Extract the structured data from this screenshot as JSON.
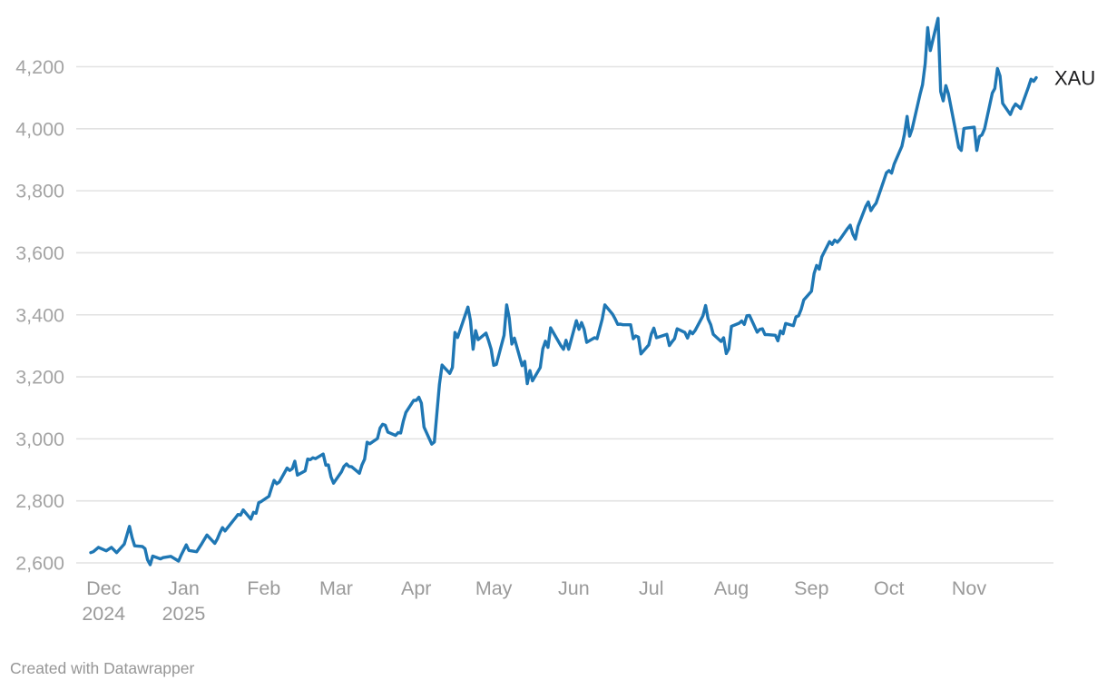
{
  "footer": {
    "text": "Created with Datawrapper"
  },
  "chart_data": {
    "type": "line",
    "title": "",
    "xlabel": "",
    "ylabel": "",
    "grid": true,
    "legend_position": "end-of-line-label",
    "line_color": "#1f77b4",
    "axis_label_color": "#a0a0a0",
    "x_range": [
      "2024-11-26",
      "2025-11-27"
    ],
    "ylim": [
      2540,
      4400
    ],
    "yaxis": {
      "ticks": [
        {
          "value": 2600,
          "label": "2,600"
        },
        {
          "value": 2800,
          "label": "2,800"
        },
        {
          "value": 3000,
          "label": "3,000"
        },
        {
          "value": 3200,
          "label": "3,200"
        },
        {
          "value": 3400,
          "label": "3,400"
        },
        {
          "value": 3600,
          "label": "3,600"
        },
        {
          "value": 3800,
          "label": "3,800"
        },
        {
          "value": 4000,
          "label": "4,000"
        },
        {
          "value": 4200,
          "label": "4,200"
        }
      ]
    },
    "xaxis": {
      "labels": [
        {
          "date": "2024-12-01",
          "line1": "Dec",
          "line2": "2024"
        },
        {
          "date": "2025-01-01",
          "line1": "Jan",
          "line2": "2025"
        },
        {
          "date": "2025-02-01",
          "line1": "Feb"
        },
        {
          "date": "2025-03-01",
          "line1": "Mar"
        },
        {
          "date": "2025-04-01",
          "line1": "Apr"
        },
        {
          "date": "2025-05-01",
          "line1": "May"
        },
        {
          "date": "2025-06-01",
          "line1": "Jun"
        },
        {
          "date": "2025-07-01",
          "line1": "Jul"
        },
        {
          "date": "2025-08-01",
          "line1": "Aug"
        },
        {
          "date": "2025-09-01",
          "line1": "Sep"
        },
        {
          "date": "2025-10-01",
          "line1": "Oct"
        },
        {
          "date": "2025-11-01",
          "line1": "Nov"
        }
      ]
    },
    "series": [
      {
        "name": "XAU",
        "points": [
          [
            "2024-11-26",
            2633
          ],
          [
            "2024-11-27",
            2636
          ],
          [
            "2024-11-29",
            2650
          ],
          [
            "2024-12-02",
            2639
          ],
          [
            "2024-12-04",
            2650
          ],
          [
            "2024-12-06",
            2633
          ],
          [
            "2024-12-09",
            2661
          ],
          [
            "2024-12-11",
            2718
          ],
          [
            "2024-12-12",
            2681
          ],
          [
            "2024-12-13",
            2655
          ],
          [
            "2024-12-16",
            2653
          ],
          [
            "2024-12-17",
            2646
          ],
          [
            "2024-12-18",
            2610
          ],
          [
            "2024-12-19",
            2594
          ],
          [
            "2024-12-20",
            2622
          ],
          [
            "2024-12-23",
            2613
          ],
          [
            "2024-12-24",
            2617
          ],
          [
            "2024-12-27",
            2621
          ],
          [
            "2024-12-30",
            2606
          ],
          [
            "2024-12-31",
            2625
          ],
          [
            "2025-01-02",
            2658
          ],
          [
            "2025-01-03",
            2640
          ],
          [
            "2025-01-06",
            2636
          ],
          [
            "2025-01-08",
            2662
          ],
          [
            "2025-01-10",
            2690
          ],
          [
            "2025-01-13",
            2663
          ],
          [
            "2025-01-14",
            2677
          ],
          [
            "2025-01-15",
            2697
          ],
          [
            "2025-01-16",
            2714
          ],
          [
            "2025-01-17",
            2703
          ],
          [
            "2025-01-21",
            2745
          ],
          [
            "2025-01-22",
            2756
          ],
          [
            "2025-01-23",
            2754
          ],
          [
            "2025-01-24",
            2771
          ],
          [
            "2025-01-27",
            2741
          ],
          [
            "2025-01-28",
            2763
          ],
          [
            "2025-01-29",
            2760
          ],
          [
            "2025-01-30",
            2794
          ],
          [
            "2025-01-31",
            2798
          ],
          [
            "2025-02-03",
            2815
          ],
          [
            "2025-02-04",
            2842
          ],
          [
            "2025-02-05",
            2866
          ],
          [
            "2025-02-06",
            2855
          ],
          [
            "2025-02-07",
            2861
          ],
          [
            "2025-02-10",
            2906
          ],
          [
            "2025-02-11",
            2898
          ],
          [
            "2025-02-12",
            2904
          ],
          [
            "2025-02-13",
            2928
          ],
          [
            "2025-02-14",
            2883
          ],
          [
            "2025-02-17",
            2897
          ],
          [
            "2025-02-18",
            2935
          ],
          [
            "2025-02-19",
            2933
          ],
          [
            "2025-02-20",
            2939
          ],
          [
            "2025-02-21",
            2936
          ],
          [
            "2025-02-24",
            2951
          ],
          [
            "2025-02-25",
            2915
          ],
          [
            "2025-02-26",
            2916
          ],
          [
            "2025-02-27",
            2877
          ],
          [
            "2025-02-28",
            2857
          ],
          [
            "2025-03-03",
            2893
          ],
          [
            "2025-03-04",
            2911
          ],
          [
            "2025-03-05",
            2919
          ],
          [
            "2025-03-06",
            2911
          ],
          [
            "2025-03-07",
            2910
          ],
          [
            "2025-03-10",
            2889
          ],
          [
            "2025-03-11",
            2916
          ],
          [
            "2025-03-12",
            2934
          ],
          [
            "2025-03-13",
            2989
          ],
          [
            "2025-03-14",
            2984
          ],
          [
            "2025-03-17",
            3001
          ],
          [
            "2025-03-18",
            3035
          ],
          [
            "2025-03-19",
            3047
          ],
          [
            "2025-03-20",
            3044
          ],
          [
            "2025-03-21",
            3022
          ],
          [
            "2025-03-24",
            3011
          ],
          [
            "2025-03-25",
            3020
          ],
          [
            "2025-03-26",
            3019
          ],
          [
            "2025-03-27",
            3057
          ],
          [
            "2025-03-28",
            3085
          ],
          [
            "2025-03-31",
            3124
          ],
          [
            "2025-04-01",
            3124
          ],
          [
            "2025-04-02",
            3134
          ],
          [
            "2025-04-03",
            3115
          ],
          [
            "2025-04-04",
            3038
          ],
          [
            "2025-04-07",
            2983
          ],
          [
            "2025-04-08",
            2990
          ],
          [
            "2025-04-09",
            3083
          ],
          [
            "2025-04-10",
            3176
          ],
          [
            "2025-04-11",
            3238
          ],
          [
            "2025-04-14",
            3211
          ],
          [
            "2025-04-15",
            3230
          ],
          [
            "2025-04-16",
            3343
          ],
          [
            "2025-04-17",
            3327
          ],
          [
            "2025-04-21",
            3425
          ],
          [
            "2025-04-22",
            3381
          ],
          [
            "2025-04-23",
            3289
          ],
          [
            "2025-04-24",
            3349
          ],
          [
            "2025-04-25",
            3320
          ],
          [
            "2025-04-28",
            3341
          ],
          [
            "2025-04-29",
            3317
          ],
          [
            "2025-04-30",
            3289
          ],
          [
            "2025-05-01",
            3237
          ],
          [
            "2025-05-02",
            3240
          ],
          [
            "2025-05-05",
            3334
          ],
          [
            "2025-05-06",
            3432
          ],
          [
            "2025-05-07",
            3390
          ],
          [
            "2025-05-08",
            3306
          ],
          [
            "2025-05-09",
            3325
          ],
          [
            "2025-05-12",
            3236
          ],
          [
            "2025-05-13",
            3250
          ],
          [
            "2025-05-14",
            3178
          ],
          [
            "2025-05-15",
            3220
          ],
          [
            "2025-05-16",
            3187
          ],
          [
            "2025-05-19",
            3230
          ],
          [
            "2025-05-20",
            3290
          ],
          [
            "2025-05-21",
            3315
          ],
          [
            "2025-05-22",
            3295
          ],
          [
            "2025-05-23",
            3358
          ],
          [
            "2025-05-27",
            3300
          ],
          [
            "2025-05-28",
            3289
          ],
          [
            "2025-05-29",
            3318
          ],
          [
            "2025-05-30",
            3289
          ],
          [
            "2025-06-02",
            3381
          ],
          [
            "2025-06-03",
            3353
          ],
          [
            "2025-06-04",
            3375
          ],
          [
            "2025-06-05",
            3353
          ],
          [
            "2025-06-06",
            3311
          ],
          [
            "2025-06-09",
            3326
          ],
          [
            "2025-06-10",
            3323
          ],
          [
            "2025-06-11",
            3355
          ],
          [
            "2025-06-12",
            3386
          ],
          [
            "2025-06-13",
            3432
          ],
          [
            "2025-06-16",
            3402
          ],
          [
            "2025-06-17",
            3387
          ],
          [
            "2025-06-18",
            3369
          ],
          [
            "2025-06-19",
            3370
          ],
          [
            "2025-06-20",
            3368
          ],
          [
            "2025-06-23",
            3368
          ],
          [
            "2025-06-24",
            3323
          ],
          [
            "2025-06-25",
            3332
          ],
          [
            "2025-06-26",
            3328
          ],
          [
            "2025-06-27",
            3274
          ],
          [
            "2025-06-30",
            3303
          ],
          [
            "2025-07-01",
            3338
          ],
          [
            "2025-07-02",
            3357
          ],
          [
            "2025-07-03",
            3326
          ],
          [
            "2025-07-07",
            3337
          ],
          [
            "2025-07-08",
            3301
          ],
          [
            "2025-07-09",
            3313
          ],
          [
            "2025-07-10",
            3323
          ],
          [
            "2025-07-11",
            3355
          ],
          [
            "2025-07-14",
            3343
          ],
          [
            "2025-07-15",
            3325
          ],
          [
            "2025-07-16",
            3347
          ],
          [
            "2025-07-17",
            3339
          ],
          [
            "2025-07-18",
            3350
          ],
          [
            "2025-07-21",
            3397
          ],
          [
            "2025-07-22",
            3430
          ],
          [
            "2025-07-23",
            3387
          ],
          [
            "2025-07-24",
            3368
          ],
          [
            "2025-07-25",
            3337
          ],
          [
            "2025-07-28",
            3314
          ],
          [
            "2025-07-29",
            3326
          ],
          [
            "2025-07-30",
            3275
          ],
          [
            "2025-07-31",
            3290
          ],
          [
            "2025-08-01",
            3363
          ],
          [
            "2025-08-04",
            3373
          ],
          [
            "2025-08-05",
            3380
          ],
          [
            "2025-08-06",
            3369
          ],
          [
            "2025-08-07",
            3397
          ],
          [
            "2025-08-08",
            3398
          ],
          [
            "2025-08-11",
            3344
          ],
          [
            "2025-08-12",
            3353
          ],
          [
            "2025-08-13",
            3355
          ],
          [
            "2025-08-14",
            3336
          ],
          [
            "2025-08-15",
            3336
          ],
          [
            "2025-08-18",
            3334
          ],
          [
            "2025-08-19",
            3316
          ],
          [
            "2025-08-20",
            3348
          ],
          [
            "2025-08-21",
            3339
          ],
          [
            "2025-08-22",
            3372
          ],
          [
            "2025-08-25",
            3365
          ],
          [
            "2025-08-26",
            3393
          ],
          [
            "2025-08-27",
            3397
          ],
          [
            "2025-08-28",
            3417
          ],
          [
            "2025-08-29",
            3448
          ],
          [
            "2025-09-01",
            3476
          ],
          [
            "2025-09-02",
            3533
          ],
          [
            "2025-09-03",
            3559
          ],
          [
            "2025-09-04",
            3547
          ],
          [
            "2025-09-05",
            3587
          ],
          [
            "2025-09-08",
            3636
          ],
          [
            "2025-09-09",
            3627
          ],
          [
            "2025-09-10",
            3641
          ],
          [
            "2025-09-11",
            3634
          ],
          [
            "2025-09-12",
            3643
          ],
          [
            "2025-09-15",
            3679
          ],
          [
            "2025-09-16",
            3689
          ],
          [
            "2025-09-17",
            3660
          ],
          [
            "2025-09-18",
            3644
          ],
          [
            "2025-09-19",
            3685
          ],
          [
            "2025-09-22",
            3749
          ],
          [
            "2025-09-23",
            3764
          ],
          [
            "2025-09-24",
            3736
          ],
          [
            "2025-09-25",
            3749
          ],
          [
            "2025-09-26",
            3760
          ],
          [
            "2025-09-29",
            3833
          ],
          [
            "2025-09-30",
            3858
          ],
          [
            "2025-10-01",
            3865
          ],
          [
            "2025-10-02",
            3857
          ],
          [
            "2025-10-03",
            3886
          ],
          [
            "2025-10-06",
            3944
          ],
          [
            "2025-10-07",
            3983
          ],
          [
            "2025-10-08",
            4040
          ],
          [
            "2025-10-09",
            3976
          ],
          [
            "2025-10-10",
            4000
          ],
          [
            "2025-10-13",
            4110
          ],
          [
            "2025-10-14",
            4142
          ],
          [
            "2025-10-15",
            4209
          ],
          [
            "2025-10-16",
            4326
          ],
          [
            "2025-10-17",
            4252
          ],
          [
            "2025-10-20",
            4356
          ],
          [
            "2025-10-21",
            4120
          ],
          [
            "2025-10-22",
            4090
          ],
          [
            "2025-10-23",
            4139
          ],
          [
            "2025-10-24",
            4113
          ],
          [
            "2025-10-27",
            3985
          ],
          [
            "2025-10-28",
            3940
          ],
          [
            "2025-10-29",
            3930
          ],
          [
            "2025-10-30",
            4001
          ],
          [
            "2025-10-31",
            4002
          ],
          [
            "2025-11-03",
            4005
          ],
          [
            "2025-11-04",
            3930
          ],
          [
            "2025-11-05",
            3975
          ],
          [
            "2025-11-06",
            3980
          ],
          [
            "2025-11-07",
            4000
          ],
          [
            "2025-11-10",
            4115
          ],
          [
            "2025-11-11",
            4130
          ],
          [
            "2025-11-12",
            4194
          ],
          [
            "2025-11-13",
            4170
          ],
          [
            "2025-11-14",
            4082
          ],
          [
            "2025-11-17",
            4046
          ],
          [
            "2025-11-18",
            4067
          ],
          [
            "2025-11-19",
            4080
          ],
          [
            "2025-11-20",
            4073
          ],
          [
            "2025-11-21",
            4065
          ],
          [
            "2025-11-24",
            4135
          ],
          [
            "2025-11-25",
            4160
          ],
          [
            "2025-11-26",
            4153
          ],
          [
            "2025-11-27",
            4165
          ]
        ]
      }
    ]
  }
}
